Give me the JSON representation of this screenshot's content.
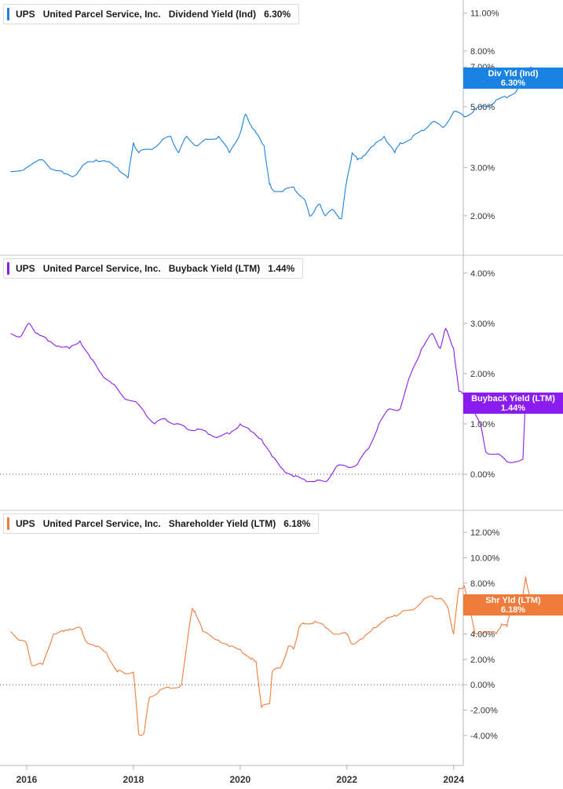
{
  "colors": {
    "dividend": "#1a82e2",
    "buyback": "#8b1cf0",
    "shareholder": "#f07c3c",
    "grid": "#d0d0d0",
    "axis_text": "#333333"
  },
  "panels": [
    {
      "ticker": "UPS",
      "company": "United Parcel Service, Inc.",
      "metric": "Dividend Yield (Ind)",
      "value": "6.30%",
      "tag_label": "Div Yld (Ind)",
      "tag_value": "6.30%"
    },
    {
      "ticker": "UPS",
      "company": "United Parcel Service, Inc.",
      "metric": "Buyback Yield (LTM)",
      "value": "1.44%",
      "tag_label": "Buyback Yield (LTM)",
      "tag_value": "1.44%"
    },
    {
      "ticker": "UPS",
      "company": "United Parcel Service, Inc.",
      "metric": "Shareholder Yield (LTM)",
      "value": "6.18%",
      "tag_label": "Shr Yld (LTM)",
      "tag_value": "6.18%"
    }
  ],
  "chart_data": [
    {
      "type": "line",
      "title": "Dividend Yield (Ind)",
      "scale": "log",
      "ylim": [
        1.75,
        11.5
      ],
      "y_ticks": [
        2,
        3,
        5,
        7,
        8,
        11
      ],
      "y_tick_labels": [
        "2.00%",
        "3.00%",
        "5.00%",
        "7.00%",
        "8.00%",
        "11.00%"
      ],
      "x_ticks": [
        2016,
        2018,
        2020,
        2022,
        2024
      ],
      "x_tick_labels": [
        "2016",
        "2018",
        "2020",
        "2022",
        "2024"
      ],
      "series": [
        {
          "name": "Div Yld (Ind)",
          "x": [
            2015.7,
            2016.0,
            2016.3,
            2016.5,
            2016.7,
            2016.9,
            2017.1,
            2017.3,
            2017.5,
            2017.7,
            2017.9,
            2018.0,
            2018.1,
            2018.3,
            2018.5,
            2018.7,
            2018.85,
            2019.0,
            2019.2,
            2019.4,
            2019.6,
            2019.8,
            2020.0,
            2020.1,
            2020.2,
            2020.3,
            2020.45,
            2020.55,
            2020.6,
            2020.8,
            2021.0,
            2021.2,
            2021.3,
            2021.4,
            2021.5,
            2021.6,
            2021.75,
            2021.9,
            2022.0,
            2022.1,
            2022.2,
            2022.3,
            2022.5,
            2022.7,
            2022.9,
            2023.0,
            2023.2,
            2023.4,
            2023.6,
            2023.8,
            2024.0,
            2024.2,
            2024.4,
            2024.6,
            2024.8,
            2025.0,
            2025.2,
            2025.3,
            2025.45,
            2025.55
          ],
          "y": [
            2.9,
            3.0,
            3.2,
            2.95,
            2.85,
            2.8,
            3.1,
            3.2,
            3.15,
            3.0,
            2.75,
            3.7,
            3.4,
            3.5,
            3.7,
            3.9,
            3.4,
            3.9,
            3.6,
            3.8,
            3.9,
            3.4,
            4.0,
            4.7,
            4.3,
            4.0,
            3.6,
            2.6,
            2.5,
            2.45,
            2.55,
            2.3,
            2.0,
            2.1,
            2.2,
            2.0,
            2.1,
            1.95,
            2.7,
            3.4,
            3.2,
            3.3,
            3.6,
            3.9,
            3.4,
            3.7,
            3.8,
            4.1,
            4.4,
            4.2,
            4.8,
            4.6,
            4.9,
            5.0,
            5.3,
            5.4,
            5.8,
            6.8,
            7.0,
            6.3
          ]
        }
      ]
    },
    {
      "type": "line",
      "title": "Buyback Yield (LTM)",
      "ylim": [
        -0.25,
        4.2
      ],
      "y_ticks": [
        0,
        1,
        2,
        3,
        4
      ],
      "y_tick_labels": [
        "0.00%",
        "1.00%",
        "2.00%",
        "3.00%",
        "4.00%"
      ],
      "x_ticks": [
        2016,
        2018,
        2020,
        2022,
        2024
      ],
      "x_tick_labels": [
        "2016",
        "2018",
        "2020",
        "2022",
        "2024"
      ],
      "series": [
        {
          "name": "Buyback Yield (LTM)",
          "x": [
            2015.7,
            2015.9,
            2016.05,
            2016.2,
            2016.4,
            2016.6,
            2016.8,
            2017.0,
            2017.2,
            2017.4,
            2017.6,
            2017.8,
            2018.0,
            2018.2,
            2018.4,
            2018.6,
            2018.8,
            2019.0,
            2019.2,
            2019.4,
            2019.6,
            2019.8,
            2020.0,
            2020.2,
            2020.4,
            2020.6,
            2020.8,
            2021.0,
            2021.2,
            2021.4,
            2021.6,
            2021.8,
            2022.0,
            2022.2,
            2022.4,
            2022.6,
            2022.8,
            2023.0,
            2023.2,
            2023.4,
            2023.6,
            2023.75,
            2023.85,
            2024.0,
            2024.1,
            2024.3,
            2024.5,
            2024.6,
            2024.8,
            2025.0,
            2025.3,
            2025.35,
            2025.5
          ],
          "y": [
            2.8,
            2.75,
            3.0,
            2.8,
            2.65,
            2.55,
            2.5,
            2.65,
            2.3,
            2.0,
            1.8,
            1.55,
            1.45,
            1.25,
            1.0,
            1.1,
            1.0,
            0.9,
            0.9,
            0.8,
            0.75,
            0.8,
            1.0,
            0.85,
            0.7,
            0.35,
            0.1,
            -0.05,
            -0.1,
            -0.15,
            -0.15,
            0.15,
            0.15,
            0.2,
            0.5,
            1.0,
            1.3,
            1.3,
            2.0,
            2.5,
            2.8,
            2.5,
            2.9,
            2.5,
            1.65,
            1.45,
            1.0,
            0.45,
            0.4,
            0.25,
            0.3,
            1.55,
            1.44
          ]
        }
      ]
    },
    {
      "type": "line",
      "title": "Shareholder Yield (LTM)",
      "ylim": [
        -5.0,
        13.0
      ],
      "y_ticks": [
        -4,
        -2,
        0,
        2,
        4,
        6,
        8,
        10,
        12
      ],
      "y_tick_labels": [
        "-4.00%",
        "-2.00%",
        "0.00%",
        "2.00%",
        "4.00%",
        "6.00%",
        "8.00%",
        "10.00%",
        "12.00%"
      ],
      "x_ticks": [
        2016,
        2018,
        2020,
        2022,
        2024
      ],
      "x_tick_labels": [
        "2016",
        "2018",
        "2020",
        "2022",
        "2024"
      ],
      "series": [
        {
          "name": "Shr Yld (LTM)",
          "x": [
            2015.7,
            2015.9,
            2016.0,
            2016.1,
            2016.3,
            2016.5,
            2016.7,
            2016.8,
            2017.0,
            2017.1,
            2017.3,
            2017.5,
            2017.7,
            2017.8,
            2018.0,
            2018.1,
            2018.2,
            2018.3,
            2018.5,
            2018.7,
            2018.9,
            2019.1,
            2019.15,
            2019.3,
            2019.6,
            2019.8,
            2020.0,
            2020.2,
            2020.3,
            2020.4,
            2020.55,
            2020.6,
            2020.75,
            2020.9,
            2021.0,
            2021.1,
            2021.2,
            2021.4,
            2021.6,
            2021.8,
            2022.0,
            2022.1,
            2022.3,
            2022.5,
            2022.7,
            2022.9,
            2023.0,
            2023.2,
            2023.4,
            2023.6,
            2023.75,
            2023.9,
            2024.0,
            2024.1,
            2024.2,
            2024.4,
            2024.6,
            2024.8,
            2024.9,
            2025.0,
            2025.1,
            2025.3,
            2025.35,
            2025.45,
            2025.55
          ],
          "y": [
            4.2,
            3.5,
            3.2,
            1.5,
            1.6,
            4.0,
            4.2,
            4.4,
            4.5,
            3.5,
            3.0,
            2.5,
            1.0,
            1.0,
            1.0,
            -3.9,
            -3.8,
            -1.0,
            -0.4,
            -0.3,
            0.0,
            6.0,
            5.8,
            4.2,
            3.5,
            3.0,
            2.8,
            2.0,
            1.8,
            -1.8,
            -1.5,
            1.0,
            1.3,
            3.0,
            2.8,
            4.5,
            4.8,
            5.0,
            4.5,
            4.0,
            4.0,
            3.2,
            3.6,
            4.5,
            5.0,
            5.5,
            5.6,
            5.9,
            6.5,
            7.0,
            6.8,
            6.0,
            4.0,
            7.6,
            7.8,
            4.0,
            4.2,
            4.0,
            4.8,
            4.6,
            6.5,
            7.0,
            8.5,
            6.5,
            6.18
          ]
        }
      ]
    }
  ]
}
